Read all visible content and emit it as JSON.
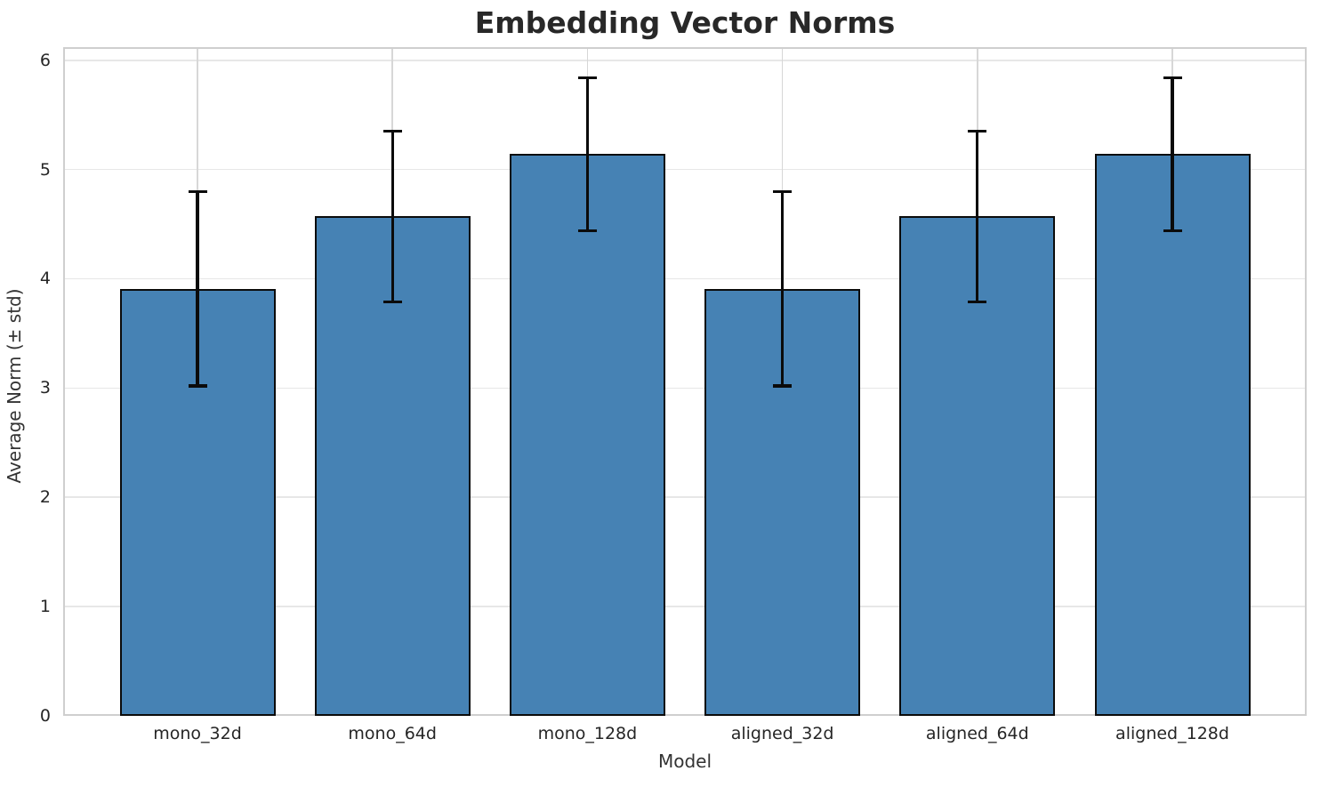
{
  "chart_data": {
    "type": "bar",
    "title": "Embedding Vector Norms",
    "xlabel": "Model",
    "ylabel": "Average Norm (± std)",
    "categories": [
      "mono_32d",
      "mono_64d",
      "mono_128d",
      "aligned_32d",
      "aligned_64d",
      "aligned_128d"
    ],
    "values": [
      3.91,
      4.57,
      5.14,
      3.91,
      4.57,
      5.14
    ],
    "errors": [
      0.89,
      0.78,
      0.7,
      0.89,
      0.78,
      0.7
    ],
    "yticks": [
      0,
      1,
      2,
      3,
      4,
      5,
      6
    ],
    "ylim": [
      0,
      6.12
    ],
    "grid": true,
    "legend_position": "none",
    "error_bar_style": "plus-minus-std-with-caps",
    "colors": {
      "bar_fill": "#4682B4",
      "bar_edge": "#0b0b0b",
      "error_bar": "#0b0b0b",
      "grid_horizontal": "#e7e7e7",
      "grid_vertical": "#d7d7d7",
      "spine": "#cfcfcf",
      "title_text": "#282828",
      "tick_text": "#262626",
      "axis_label_text": "#333333",
      "background": "#ffffff"
    }
  }
}
